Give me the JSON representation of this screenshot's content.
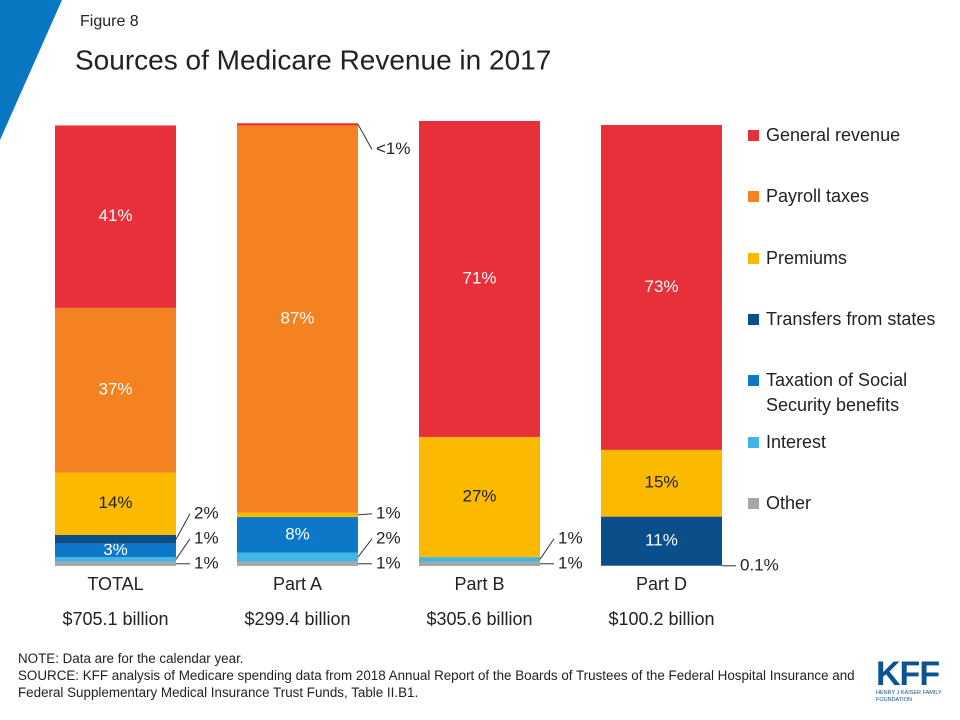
{
  "chart_data": {
    "type": "stacked_bar",
    "figure_label": "Figure 8",
    "title": "Sources of Medicare Revenue in 2017",
    "categories": [
      "TOTAL",
      "Part A",
      "Part B",
      "Part D"
    ],
    "category_totals": [
      "$705.1 billion",
      "$299.4 billion",
      "$305.6 billion",
      "$100.2 billion"
    ],
    "ylim": [
      0,
      100
    ],
    "series": [
      {
        "name": "General revenue",
        "color": "#e8303a",
        "label_color": "#ffffff",
        "values": [
          41,
          0.5,
          71,
          73
        ],
        "value_labels": [
          "41%",
          "<1%",
          "71%",
          "73%"
        ]
      },
      {
        "name": "Payroll taxes",
        "color": "#f58220",
        "label_color": "#ffffff",
        "values": [
          37,
          87,
          null,
          null
        ],
        "value_labels": [
          "37%",
          "87%",
          null,
          null
        ]
      },
      {
        "name": "Premiums",
        "color": "#fbb900",
        "label_color": "#222222",
        "values": [
          14,
          1,
          27,
          15
        ],
        "value_labels": [
          "14%",
          "1%",
          "27%",
          "15%"
        ]
      },
      {
        "name": "Transfers from states",
        "color": "#0b4f8a",
        "label_color": "#ffffff",
        "values": [
          2,
          null,
          null,
          11
        ],
        "value_labels": [
          "2%",
          null,
          null,
          "11%"
        ]
      },
      {
        "name": "Taxation of Social Security benefits",
        "color": "#0d78c8",
        "label_color": "#ffffff",
        "values": [
          3,
          8,
          null,
          null
        ],
        "value_labels": [
          "3%",
          "8%",
          null,
          null
        ]
      },
      {
        "name": "Interest",
        "color": "#41b6e6",
        "label_color": "#222222",
        "values": [
          1,
          2,
          1,
          null
        ],
        "value_labels": [
          "1%",
          "2%",
          "1%",
          null
        ]
      },
      {
        "name": "Other",
        "color": "#a6a6a6",
        "label_color": "#222222",
        "values": [
          1,
          1,
          1,
          0.1
        ],
        "value_labels": [
          "1%",
          "1%",
          "1%",
          "0.1%"
        ]
      }
    ],
    "notes": [
      "NOTE: Data are for the calendar year.",
      "SOURCE: KFF analysis of Medicare spending data from 2018 Annual Report of the Boards of Trustees of the Federal Hospital Insurance and Federal Supplementary Medical Insurance Trust Funds, Table II.B1."
    ],
    "logo": {
      "name": "KFF",
      "subtitle": "HENRY J KAISER FAMILY FOUNDATION"
    }
  }
}
